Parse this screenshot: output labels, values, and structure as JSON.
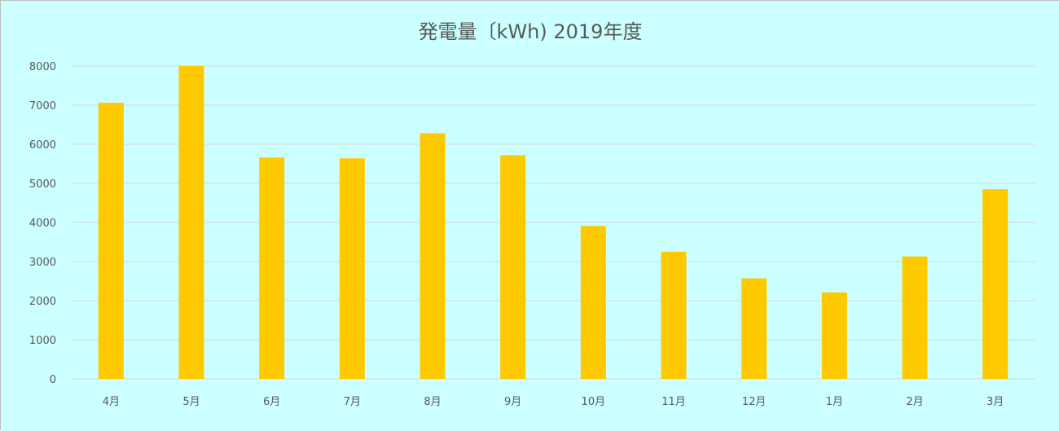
{
  "colors": {
    "background": "#ccffff",
    "bar": "#ffc900",
    "gridline": "#d9d9d9",
    "text": "#595959"
  },
  "chart_data": {
    "type": "bar",
    "title": "発電量〔kWh) 2019年度",
    "xlabel": "",
    "ylabel": "",
    "categories": [
      "4月",
      "5月",
      "6月",
      "7月",
      "8月",
      "9月",
      "10月",
      "11月",
      "12月",
      "1月",
      "2月",
      "3月"
    ],
    "values": [
      7060,
      8000,
      5660,
      5640,
      6280,
      5720,
      3910,
      3250,
      2570,
      2210,
      3130,
      4850
    ],
    "ylim": [
      0,
      8000
    ],
    "yticks": [
      0,
      1000,
      2000,
      3000,
      4000,
      5000,
      6000,
      7000,
      8000
    ],
    "grid": true,
    "legend": "none"
  }
}
